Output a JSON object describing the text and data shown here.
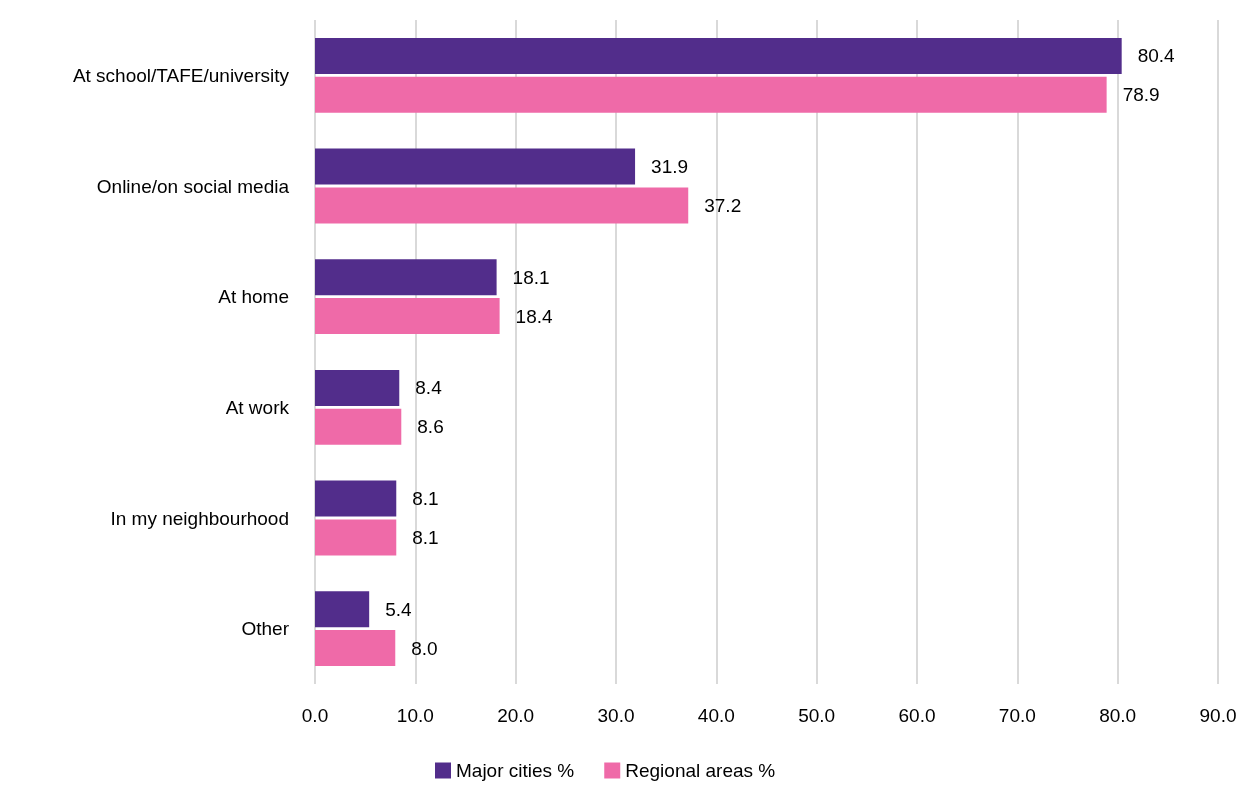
{
  "chart_data": {
    "type": "bar",
    "orientation": "horizontal",
    "categories": [
      "At school/TAFE/university",
      "Online/on social media",
      "At home",
      "At work",
      "In my neighbourhood",
      "Other"
    ],
    "series": [
      {
        "name": "Major cities %",
        "color": "#522d8b",
        "values": [
          80.4,
          31.9,
          18.1,
          8.4,
          8.1,
          5.4
        ],
        "value_labels": [
          "80.4",
          "31.9",
          "18.1",
          "8.4",
          "8.1",
          "5.4"
        ]
      },
      {
        "name": "Regional areas %",
        "color": "#ef6aa8",
        "values": [
          78.9,
          37.2,
          18.4,
          8.6,
          8.1,
          8.0
        ],
        "value_labels": [
          "78.9",
          "37.2",
          "18.4",
          "8.6",
          "8.1",
          "8.0"
        ]
      }
    ],
    "xlim": [
      0,
      90
    ],
    "xticks": [
      {
        "value": 0,
        "label": "0.0"
      },
      {
        "value": 10,
        "label": "10.0"
      },
      {
        "value": 20,
        "label": "20.0"
      },
      {
        "value": 30,
        "label": "30.0"
      },
      {
        "value": 40,
        "label": "40.0"
      },
      {
        "value": 50,
        "label": "50.0"
      },
      {
        "value": 60,
        "label": "60.0"
      },
      {
        "value": 70,
        "label": "70.0"
      },
      {
        "value": 80,
        "label": "80.0"
      },
      {
        "value": 90,
        "label": "90.0"
      }
    ],
    "grid": "x",
    "legend": "bottom"
  }
}
